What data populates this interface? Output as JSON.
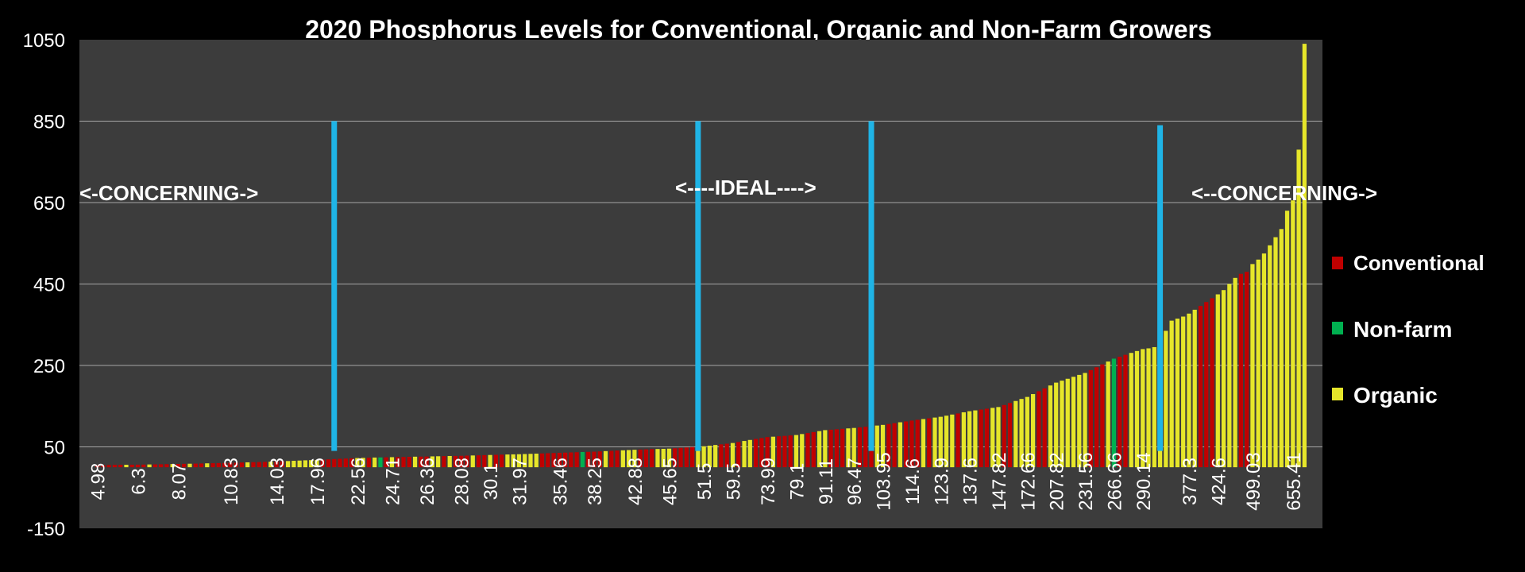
{
  "chart_data": {
    "type": "bar",
    "title": "2020 Phosphorus  Levels for Conventional, Organic and Non-Farm  Growers",
    "xlabel": "",
    "ylabel": "",
    "ylim": [
      -150,
      1050
    ],
    "yticks": [
      -150,
      50,
      250,
      450,
      650,
      850,
      1050
    ],
    "grid": true,
    "legend_position": "right",
    "colors": {
      "background": "#000000",
      "plot_area": "#3c3c3c",
      "gridline": "#a6a6a6",
      "Conventional": "#c00000",
      "Non-farm": "#00b050",
      "Organic": "#e6e62a",
      "marker_line": "#1fb4e6"
    },
    "legend": [
      {
        "name": "Conventional"
      },
      {
        "name": "Non-farm"
      },
      {
        "name": "Organic"
      }
    ],
    "x_tick_labels": [
      "4.98",
      "6.3",
      "8.07",
      "10.83",
      "14.03",
      "17.96",
      "22.56",
      "24.71",
      "26.36",
      "28.08",
      "30.1",
      "31.97",
      "35.46",
      "38.25",
      "42.88",
      "45.65",
      "51.5",
      "59.5",
      "73.99",
      "79.1",
      "91.11",
      "96.47",
      "103.95",
      "114.6",
      "123.9",
      "137.6",
      "147.82",
      "172.66",
      "207.82",
      "231.56",
      "266.66",
      "290.14",
      "377.3",
      "424.6",
      "499.03",
      "655.41"
    ],
    "annotations": [
      {
        "text": "<-CONCERNING->"
      },
      {
        "text": "<----IDEAL---->"
      },
      {
        "text": "<--CONCERNING->"
      }
    ],
    "reference_lines": [
      {
        "at_value": 20,
        "from": 40,
        "to": 850
      },
      {
        "at_value": 50,
        "from": 40,
        "to": 850
      },
      {
        "at_value": 100,
        "from": 40,
        "to": 850
      },
      {
        "at_value": 300,
        "from": 40,
        "to": 840
      }
    ],
    "bars": [
      {
        "v": 4.98,
        "c": "C"
      },
      {
        "v": 5.2,
        "c": "C"
      },
      {
        "v": 5.5,
        "c": "C"
      },
      {
        "v": 5.8,
        "c": "C"
      },
      {
        "v": 6.0,
        "c": "C"
      },
      {
        "v": 6.1,
        "c": "O"
      },
      {
        "v": 6.2,
        "c": "C"
      },
      {
        "v": 6.3,
        "c": "C"
      },
      {
        "v": 6.5,
        "c": "C"
      },
      {
        "v": 6.8,
        "c": "O"
      },
      {
        "v": 7.0,
        "c": "C"
      },
      {
        "v": 7.3,
        "c": "C"
      },
      {
        "v": 7.5,
        "c": "C"
      },
      {
        "v": 7.8,
        "c": "O"
      },
      {
        "v": 8.07,
        "c": "C"
      },
      {
        "v": 8.3,
        "c": "C"
      },
      {
        "v": 8.6,
        "c": "O"
      },
      {
        "v": 8.9,
        "c": "C"
      },
      {
        "v": 9.2,
        "c": "C"
      },
      {
        "v": 9.6,
        "c": "O"
      },
      {
        "v": 9.9,
        "c": "C"
      },
      {
        "v": 10.2,
        "c": "C"
      },
      {
        "v": 10.5,
        "c": "C"
      },
      {
        "v": 10.83,
        "c": "C"
      },
      {
        "v": 11.2,
        "c": "C"
      },
      {
        "v": 11.6,
        "c": "C"
      },
      {
        "v": 12.0,
        "c": "O"
      },
      {
        "v": 12.4,
        "c": "C"
      },
      {
        "v": 12.8,
        "c": "C"
      },
      {
        "v": 13.2,
        "c": "C"
      },
      {
        "v": 13.6,
        "c": "O"
      },
      {
        "v": 14.03,
        "c": "C"
      },
      {
        "v": 14.6,
        "c": "C"
      },
      {
        "v": 15.2,
        "c": "O"
      },
      {
        "v": 15.8,
        "c": "O"
      },
      {
        "v": 16.4,
        "c": "O"
      },
      {
        "v": 17.0,
        "c": "O"
      },
      {
        "v": 17.5,
        "c": "O"
      },
      {
        "v": 17.96,
        "c": "O"
      },
      {
        "v": 18.6,
        "c": "C"
      },
      {
        "v": 19.3,
        "c": "C"
      },
      {
        "v": 20.0,
        "c": "C"
      },
      {
        "v": 20.7,
        "c": "C"
      },
      {
        "v": 21.3,
        "c": "C"
      },
      {
        "v": 22.0,
        "c": "C"
      },
      {
        "v": 22.56,
        "c": "O"
      },
      {
        "v": 23.0,
        "c": "O"
      },
      {
        "v": 23.4,
        "c": "C"
      },
      {
        "v": 23.8,
        "c": "O"
      },
      {
        "v": 24.1,
        "c": "N"
      },
      {
        "v": 24.4,
        "c": "C"
      },
      {
        "v": 24.71,
        "c": "O"
      },
      {
        "v": 25.0,
        "c": "C"
      },
      {
        "v": 25.3,
        "c": "C"
      },
      {
        "v": 25.6,
        "c": "C"
      },
      {
        "v": 25.9,
        "c": "O"
      },
      {
        "v": 26.1,
        "c": "C"
      },
      {
        "v": 26.36,
        "c": "C"
      },
      {
        "v": 26.7,
        "c": "O"
      },
      {
        "v": 27.0,
        "c": "O"
      },
      {
        "v": 27.3,
        "c": "C"
      },
      {
        "v": 27.6,
        "c": "O"
      },
      {
        "v": 27.8,
        "c": "C"
      },
      {
        "v": 28.08,
        "c": "C"
      },
      {
        "v": 28.5,
        "c": "C"
      },
      {
        "v": 28.9,
        "c": "O"
      },
      {
        "v": 29.3,
        "c": "C"
      },
      {
        "v": 29.7,
        "c": "C"
      },
      {
        "v": 30.1,
        "c": "O"
      },
      {
        "v": 30.5,
        "c": "C"
      },
      {
        "v": 30.9,
        "c": "C"
      },
      {
        "v": 31.3,
        "c": "O"
      },
      {
        "v": 31.6,
        "c": "O"
      },
      {
        "v": 31.97,
        "c": "O"
      },
      {
        "v": 32.4,
        "c": "O"
      },
      {
        "v": 32.9,
        "c": "O"
      },
      {
        "v": 33.4,
        "c": "O"
      },
      {
        "v": 33.9,
        "c": "C"
      },
      {
        "v": 34.4,
        "c": "C"
      },
      {
        "v": 34.9,
        "c": "C"
      },
      {
        "v": 35.46,
        "c": "C"
      },
      {
        "v": 35.9,
        "c": "C"
      },
      {
        "v": 36.4,
        "c": "C"
      },
      {
        "v": 36.9,
        "c": "C"
      },
      {
        "v": 37.4,
        "c": "N"
      },
      {
        "v": 37.8,
        "c": "C"
      },
      {
        "v": 38.25,
        "c": "C"
      },
      {
        "v": 38.9,
        "c": "C"
      },
      {
        "v": 39.6,
        "c": "O"
      },
      {
        "v": 40.3,
        "c": "C"
      },
      {
        "v": 41.0,
        "c": "C"
      },
      {
        "v": 41.6,
        "c": "O"
      },
      {
        "v": 42.2,
        "c": "O"
      },
      {
        "v": 42.88,
        "c": "O"
      },
      {
        "v": 43.4,
        "c": "C"
      },
      {
        "v": 43.9,
        "c": "C"
      },
      {
        "v": 44.4,
        "c": "C"
      },
      {
        "v": 44.8,
        "c": "O"
      },
      {
        "v": 45.2,
        "c": "O"
      },
      {
        "v": 45.65,
        "c": "O"
      },
      {
        "v": 46.5,
        "c": "C"
      },
      {
        "v": 47.5,
        "c": "C"
      },
      {
        "v": 48.5,
        "c": "C"
      },
      {
        "v": 49.5,
        "c": "C"
      },
      {
        "v": 50.5,
        "c": "O"
      },
      {
        "v": 51.5,
        "c": "O"
      },
      {
        "v": 53.0,
        "c": "O"
      },
      {
        "v": 54.6,
        "c": "O"
      },
      {
        "v": 56.2,
        "c": "C"
      },
      {
        "v": 57.8,
        "c": "C"
      },
      {
        "v": 59.5,
        "c": "O"
      },
      {
        "v": 62.0,
        "c": "C"
      },
      {
        "v": 64.5,
        "c": "O"
      },
      {
        "v": 67.0,
        "c": "O"
      },
      {
        "v": 69.5,
        "c": "C"
      },
      {
        "v": 71.7,
        "c": "C"
      },
      {
        "v": 73.99,
        "c": "C"
      },
      {
        "v": 75.0,
        "c": "O"
      },
      {
        "v": 76.0,
        "c": "C"
      },
      {
        "v": 77.0,
        "c": "C"
      },
      {
        "v": 78.1,
        "c": "C"
      },
      {
        "v": 79.1,
        "c": "O"
      },
      {
        "v": 81.5,
        "c": "O"
      },
      {
        "v": 83.9,
        "c": "C"
      },
      {
        "v": 86.3,
        "c": "C"
      },
      {
        "v": 88.7,
        "c": "O"
      },
      {
        "v": 91.11,
        "c": "O"
      },
      {
        "v": 92.2,
        "c": "C"
      },
      {
        "v": 93.2,
        "c": "C"
      },
      {
        "v": 94.3,
        "c": "C"
      },
      {
        "v": 95.4,
        "c": "O"
      },
      {
        "v": 96.47,
        "c": "O"
      },
      {
        "v": 97.9,
        "c": "C"
      },
      {
        "v": 99.4,
        "c": "C"
      },
      {
        "v": 100.9,
        "c": "C"
      },
      {
        "v": 102.4,
        "c": "O"
      },
      {
        "v": 103.95,
        "c": "O"
      },
      {
        "v": 106.1,
        "c": "C"
      },
      {
        "v": 108.2,
        "c": "C"
      },
      {
        "v": 110.4,
        "c": "O"
      },
      {
        "v": 112.5,
        "c": "C"
      },
      {
        "v": 114.6,
        "c": "C"
      },
      {
        "v": 116.5,
        "c": "C"
      },
      {
        "v": 118.3,
        "c": "O"
      },
      {
        "v": 120.2,
        "c": "C"
      },
      {
        "v": 122.0,
        "c": "O"
      },
      {
        "v": 123.9,
        "c": "O"
      },
      {
        "v": 126.6,
        "c": "O"
      },
      {
        "v": 129.4,
        "c": "O"
      },
      {
        "v": 132.1,
        "c": "C"
      },
      {
        "v": 134.9,
        "c": "O"
      },
      {
        "v": 137.6,
        "c": "O"
      },
      {
        "v": 139.6,
        "c": "O"
      },
      {
        "v": 141.7,
        "c": "C"
      },
      {
        "v": 143.7,
        "c": "C"
      },
      {
        "v": 145.8,
        "c": "O"
      },
      {
        "v": 147.82,
        "c": "O"
      },
      {
        "v": 152.8,
        "c": "C"
      },
      {
        "v": 157.8,
        "c": "C"
      },
      {
        "v": 162.7,
        "c": "O"
      },
      {
        "v": 167.7,
        "c": "O"
      },
      {
        "v": 172.66,
        "c": "O"
      },
      {
        "v": 179.7,
        "c": "O"
      },
      {
        "v": 186.7,
        "c": "C"
      },
      {
        "v": 193.7,
        "c": "C"
      },
      {
        "v": 200.8,
        "c": "O"
      },
      {
        "v": 207.82,
        "c": "O"
      },
      {
        "v": 212.6,
        "c": "O"
      },
      {
        "v": 217.3,
        "c": "O"
      },
      {
        "v": 222.1,
        "c": "O"
      },
      {
        "v": 226.8,
        "c": "O"
      },
      {
        "v": 231.56,
        "c": "O"
      },
      {
        "v": 238.6,
        "c": "C"
      },
      {
        "v": 245.6,
        "c": "C"
      },
      {
        "v": 252.6,
        "c": "C"
      },
      {
        "v": 259.6,
        "c": "O"
      },
      {
        "v": 266.66,
        "c": "N"
      },
      {
        "v": 271.4,
        "c": "C"
      },
      {
        "v": 276.1,
        "c": "C"
      },
      {
        "v": 280.8,
        "c": "O"
      },
      {
        "v": 285.4,
        "c": "O"
      },
      {
        "v": 290.14,
        "c": "O"
      },
      {
        "v": 292.0,
        "c": "O"
      },
      {
        "v": 295.0,
        "c": "O"
      },
      {
        "v": 315.0,
        "c": "O"
      },
      {
        "v": 335.0,
        "c": "O"
      },
      {
        "v": 360.0,
        "c": "O"
      },
      {
        "v": 365.0,
        "c": "O"
      },
      {
        "v": 370.0,
        "c": "O"
      },
      {
        "v": 377.3,
        "c": "O"
      },
      {
        "v": 386.8,
        "c": "O"
      },
      {
        "v": 396.2,
        "c": "C"
      },
      {
        "v": 405.7,
        "c": "C"
      },
      {
        "v": 415.1,
        "c": "C"
      },
      {
        "v": 424.6,
        "c": "O"
      },
      {
        "v": 435.0,
        "c": "O"
      },
      {
        "v": 450.0,
        "c": "O"
      },
      {
        "v": 465.0,
        "c": "O"
      },
      {
        "v": 475.0,
        "c": "C"
      },
      {
        "v": 480.0,
        "c": "C"
      },
      {
        "v": 499.03,
        "c": "O"
      },
      {
        "v": 510.0,
        "c": "O"
      },
      {
        "v": 525.0,
        "c": "O"
      },
      {
        "v": 545.0,
        "c": "O"
      },
      {
        "v": 565.0,
        "c": "O"
      },
      {
        "v": 585.0,
        "c": "O"
      },
      {
        "v": 630.0,
        "c": "O"
      },
      {
        "v": 655.41,
        "c": "O"
      },
      {
        "v": 780.0,
        "c": "O"
      },
      {
        "v": 1040.0,
        "c": "O"
      }
    ]
  }
}
